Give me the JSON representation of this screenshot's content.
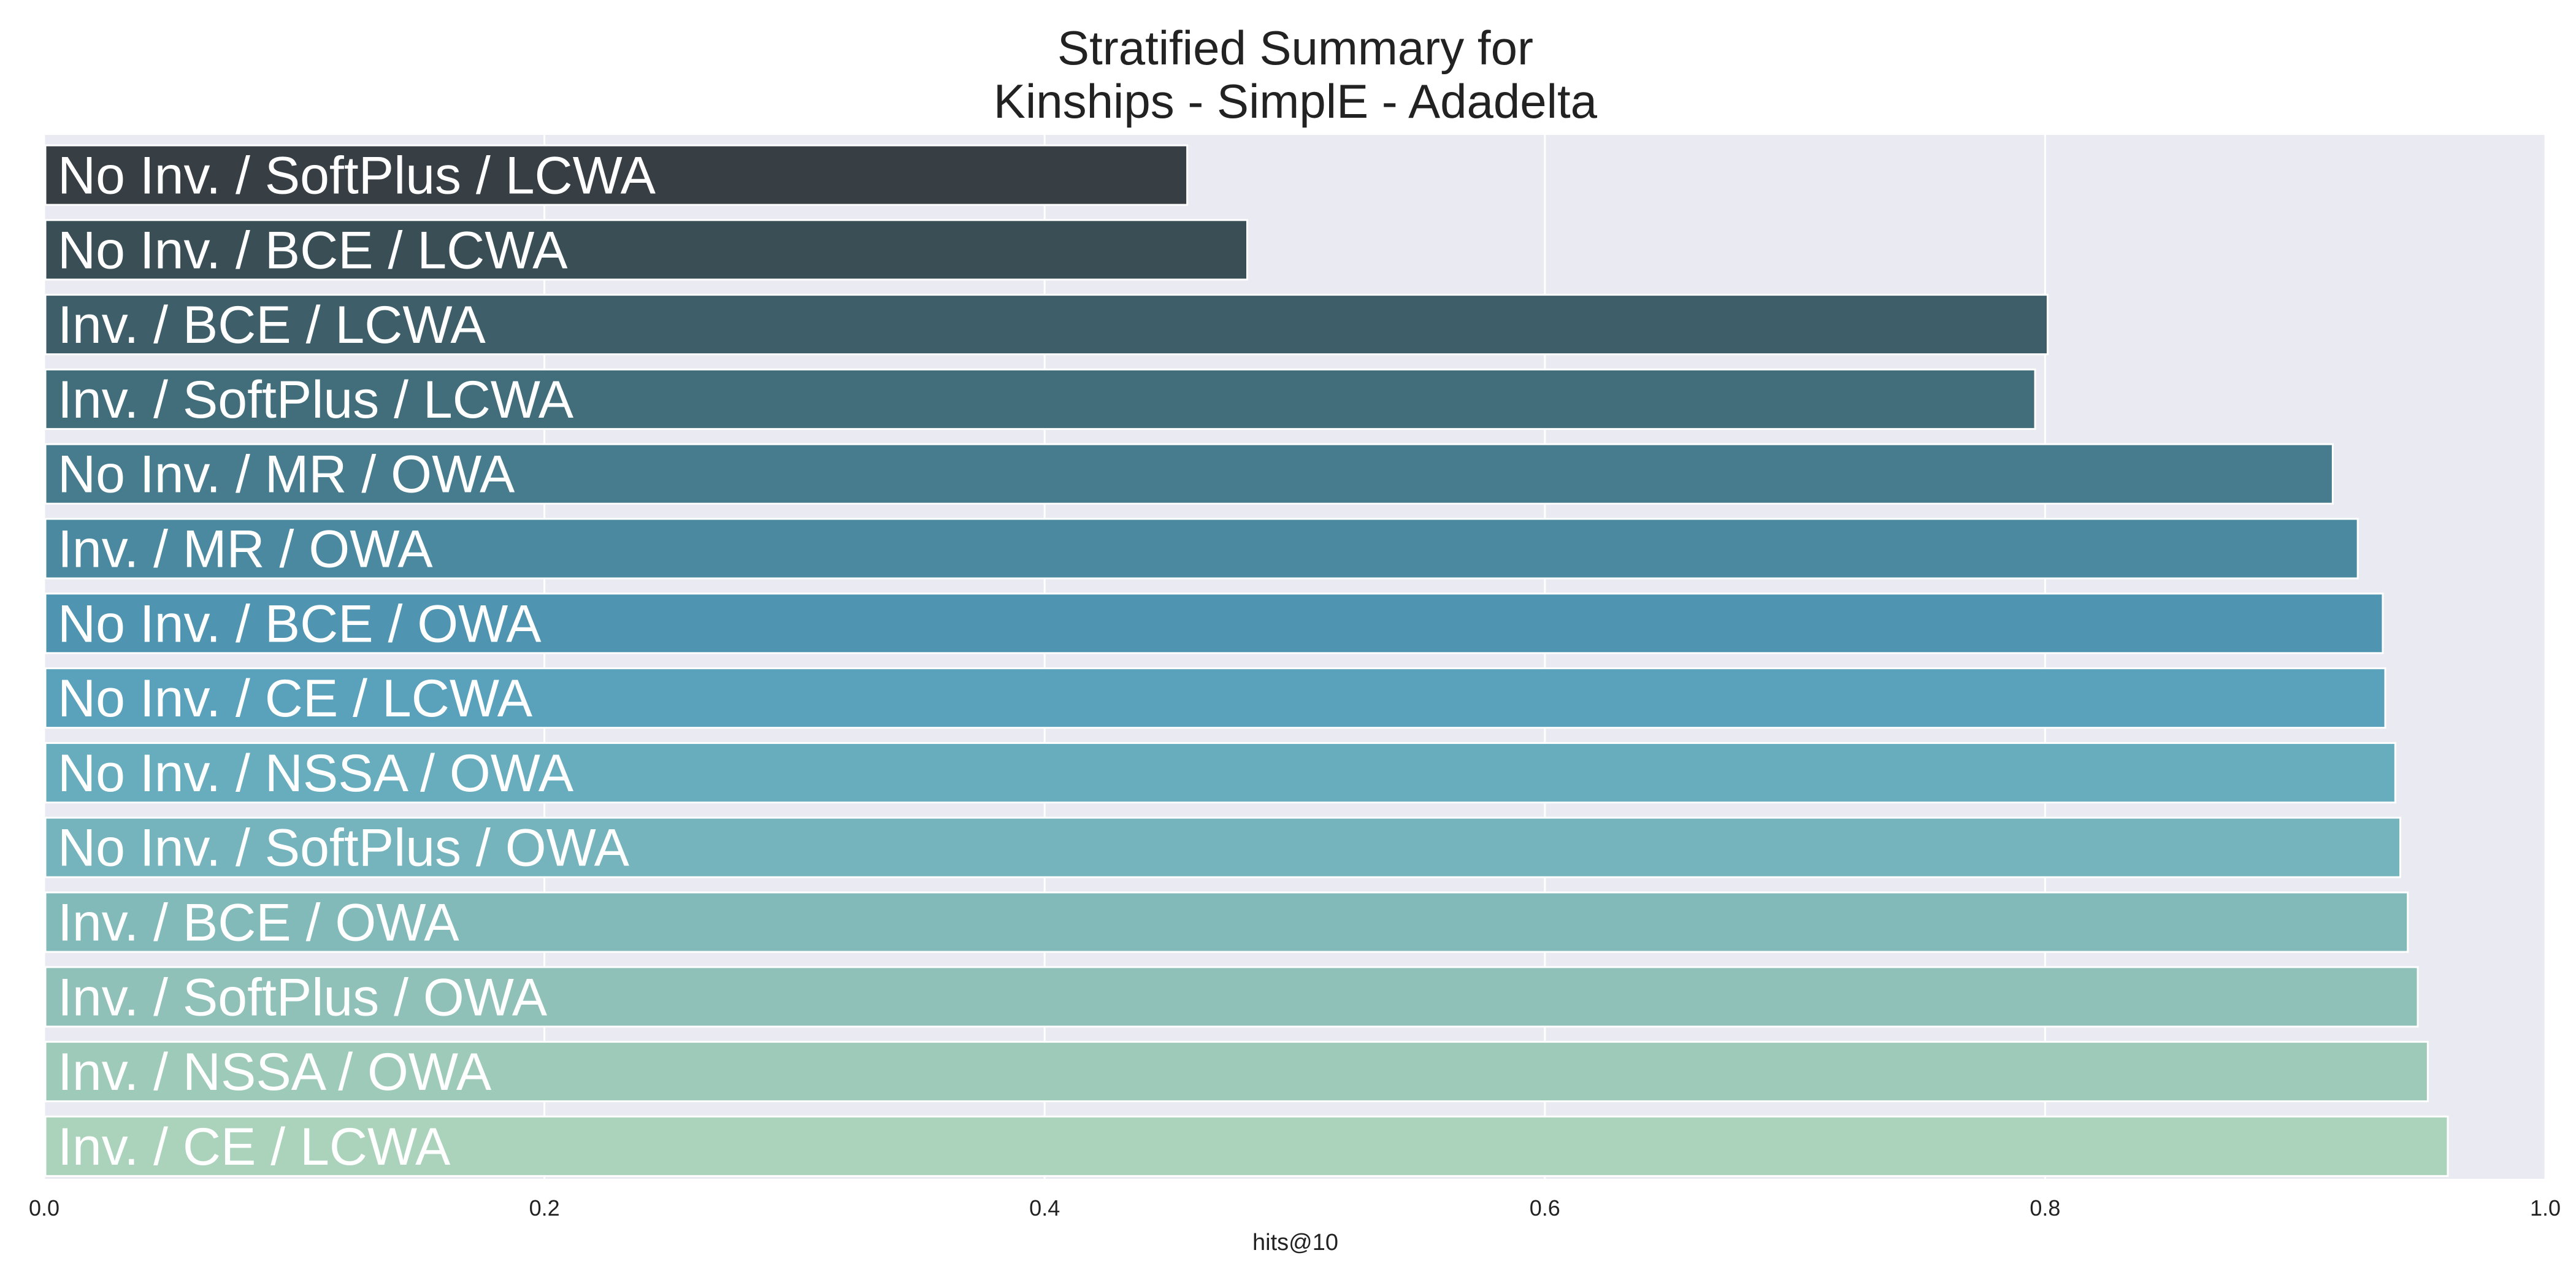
{
  "chart_data": {
    "type": "bar",
    "orientation": "horizontal",
    "title": [
      "Stratified Summary for",
      "Kinships - SimplE - Adadelta"
    ],
    "xlabel": "hits@10",
    "ylabel": "",
    "xlim": [
      0,
      1.0
    ],
    "xticks": [
      0.0,
      0.2,
      0.4,
      0.6,
      0.8,
      1.0
    ],
    "xtick_labels": [
      "0.0",
      "0.2",
      "0.4",
      "0.6",
      "0.8",
      "1.0"
    ],
    "grid": true,
    "legend": "none",
    "background": "#eaeaf2",
    "categories": [
      "No Inv. / SoftPlus / LCWA",
      "No Inv. / BCE / LCWA",
      "Inv. / BCE / LCWA",
      "Inv. / SoftPlus / LCWA",
      "No Inv. / MR / OWA",
      "Inv. / MR / OWA",
      "No Inv. / BCE / OWA",
      "No Inv. / CE / LCWA",
      "No Inv. / NSSA / OWA",
      "No Inv. / SoftPlus / OWA",
      "Inv. / BCE / OWA",
      "Inv. / SoftPlus / OWA",
      "Inv. / NSSA / OWA",
      "Inv. / CE / LCWA"
    ],
    "values": [
      0.457,
      0.481,
      0.801,
      0.796,
      0.915,
      0.925,
      0.935,
      0.936,
      0.94,
      0.942,
      0.945,
      0.949,
      0.953,
      0.961
    ],
    "colors": [
      "#373e44",
      "#3a4e56",
      "#3e5e69",
      "#426e7b",
      "#467c8d",
      "#4a89a0",
      "#4f95b2",
      "#5aa2bb",
      "#67adbd",
      "#75b4bc",
      "#82bab9",
      "#8fc1b8",
      "#9ecab9",
      "#abd3bc"
    ]
  }
}
